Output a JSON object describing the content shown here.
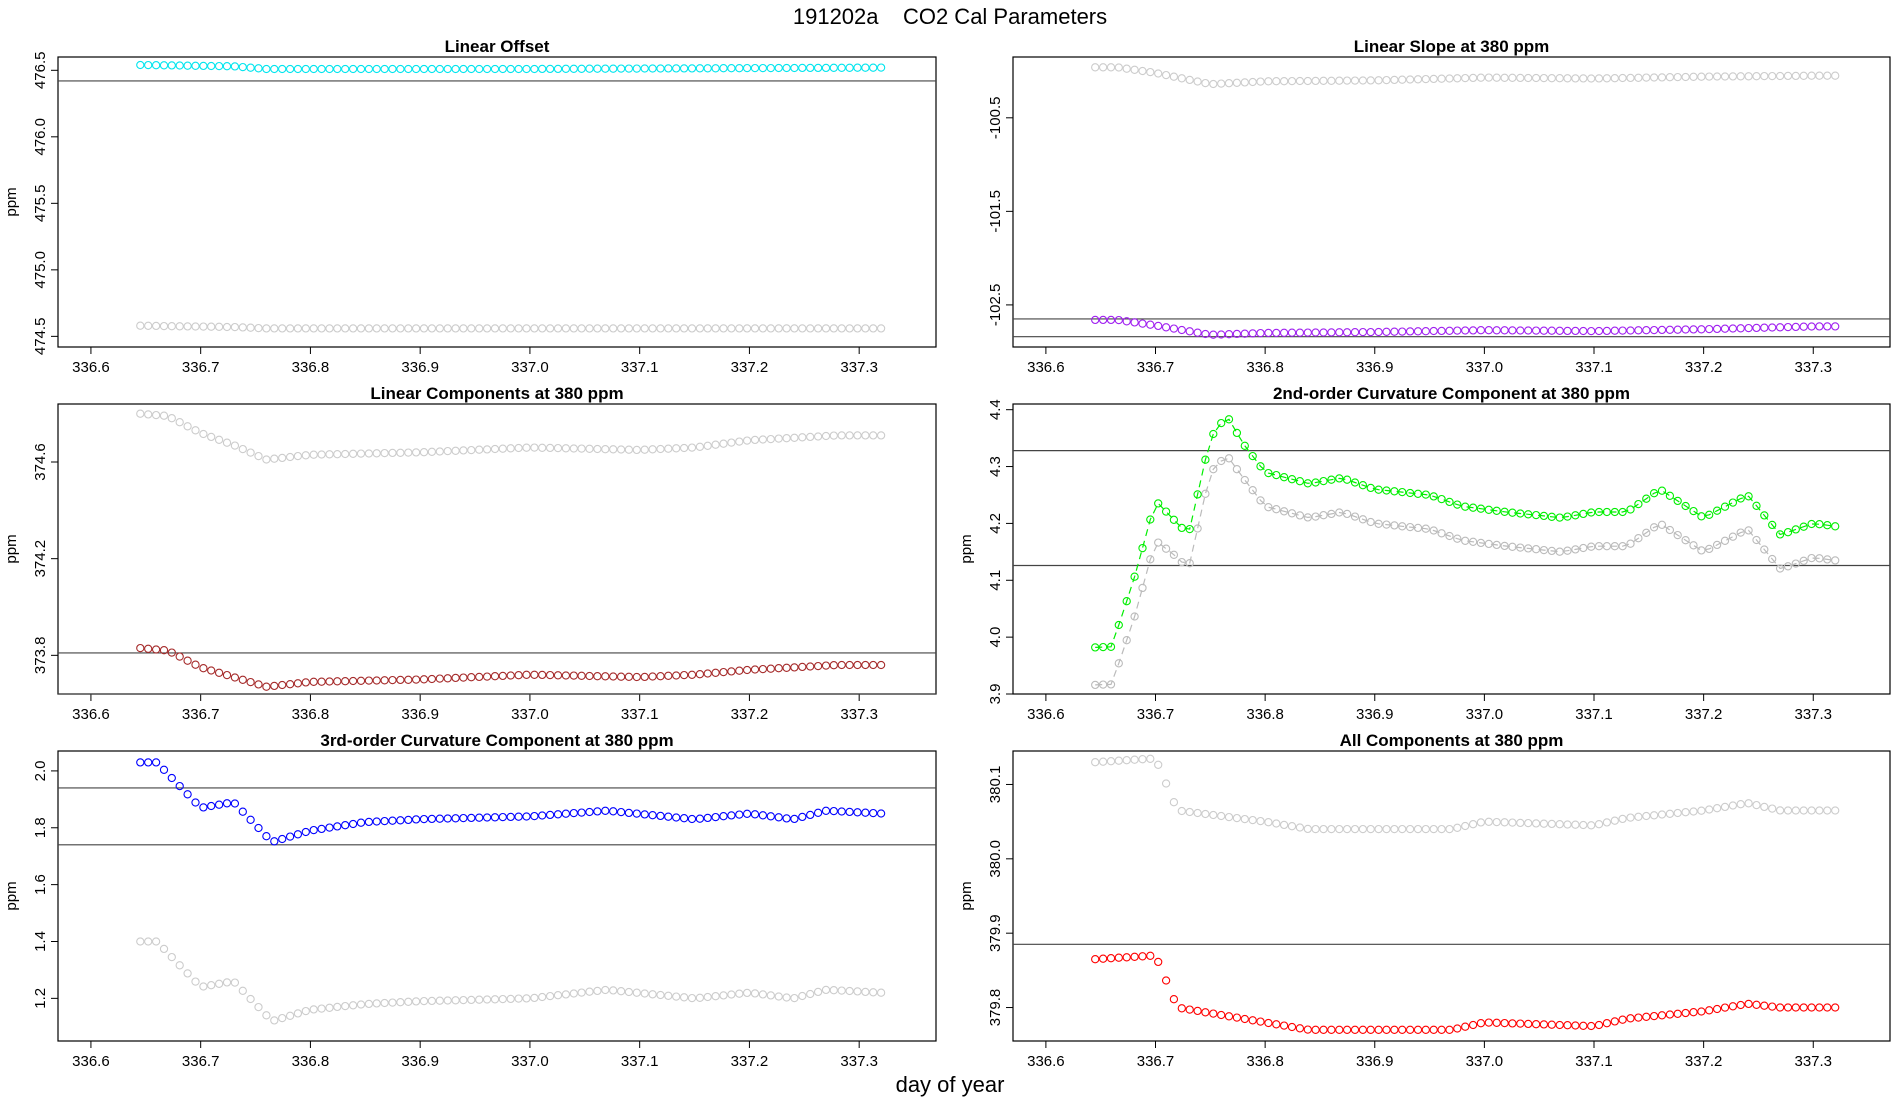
{
  "figure": {
    "title": "191202a    CO2 Cal Parameters",
    "xlabel": "day of year"
  },
  "chart_data": [
    {
      "type": "scatter",
      "title": "Linear Offset",
      "ylabel": "ppm",
      "xlim": [
        336.57,
        337.37
      ],
      "ylim": [
        474.42,
        476.6
      ],
      "x_ticks": [
        336.6,
        336.7,
        336.8,
        336.9,
        337.0,
        337.1,
        337.2,
        337.3
      ],
      "y_ticks": [
        474.5,
        475.0,
        475.5,
        476.0,
        476.5
      ],
      "y_tick_labels": [
        "474.5",
        "475.0",
        "475.5",
        "476.0",
        "476.5"
      ],
      "hlines": [
        476.42
      ],
      "series": [
        {
          "color": "#00e5ee",
          "connected": false,
          "x": [
            336.645,
            336.73,
            336.76,
            337.0,
            337.32
          ],
          "y": [
            476.54,
            476.53,
            476.51,
            476.51,
            476.52
          ]
        },
        {
          "color": "#cccccc",
          "connected": false,
          "x": [
            336.645,
            336.73,
            336.76,
            337.0,
            337.32
          ],
          "y": [
            474.58,
            474.57,
            474.56,
            474.56,
            474.56
          ]
        }
      ]
    },
    {
      "type": "scatter",
      "title": "Linear Slope at 380 ppm",
      "ylabel": "",
      "xlim": [
        336.57,
        337.37
      ],
      "ylim": [
        -102.95,
        -99.85
      ],
      "x_ticks": [
        336.6,
        336.7,
        336.8,
        336.9,
        337.0,
        337.1,
        337.2,
        337.3
      ],
      "y_ticks": [
        -100.5,
        -101.5,
        -102.5
      ],
      "y_tick_labels": [
        "-100.5",
        "-101.5",
        "-102.5"
      ],
      "hlines": [
        -102.65,
        -102.84
      ],
      "series": [
        {
          "color": "#cccccc",
          "connected": false,
          "x": [
            336.645,
            336.665,
            336.7,
            336.75,
            336.8,
            336.9,
            337.0,
            337.1,
            337.2,
            337.3,
            337.32
          ],
          "y": [
            -99.96,
            -99.96,
            -100.02,
            -100.14,
            -100.11,
            -100.1,
            -100.07,
            -100.08,
            -100.06,
            -100.05,
            -100.05
          ]
        },
        {
          "color": "#a020f0",
          "connected": false,
          "x": [
            336.645,
            336.665,
            336.7,
            336.75,
            336.8,
            336.9,
            337.0,
            337.1,
            337.2,
            337.3,
            337.32
          ],
          "y": [
            -102.66,
            -102.66,
            -102.72,
            -102.82,
            -102.8,
            -102.79,
            -102.77,
            -102.78,
            -102.76,
            -102.73,
            -102.73
          ]
        }
      ]
    },
    {
      "type": "scatter",
      "title": "Linear Components at 380 ppm",
      "ylabel": "ppm",
      "xlim": [
        336.57,
        337.37
      ],
      "ylim": [
        373.64,
        374.84
      ],
      "x_ticks": [
        336.6,
        336.7,
        336.8,
        336.9,
        337.0,
        337.1,
        337.2,
        337.3
      ],
      "y_ticks": [
        373.8,
        374.2,
        374.6
      ],
      "y_tick_labels": [
        "373.8",
        "374.2",
        "374.6"
      ],
      "hlines": [
        373.81,
        373.64
      ],
      "series": [
        {
          "color": "#cccccc",
          "connected": false,
          "x": [
            336.645,
            336.67,
            336.7,
            336.73,
            336.76,
            336.8,
            336.9,
            337.0,
            337.1,
            337.15,
            337.2,
            337.28,
            337.32
          ],
          "y": [
            374.8,
            374.79,
            374.72,
            374.67,
            374.61,
            374.63,
            374.64,
            374.66,
            374.65,
            374.66,
            374.69,
            374.71,
            374.71
          ]
        },
        {
          "color": "#a52a2a",
          "connected": false,
          "x": [
            336.645,
            336.67,
            336.7,
            336.73,
            336.76,
            336.8,
            336.9,
            337.0,
            337.1,
            337.15,
            337.2,
            337.28,
            337.32
          ],
          "y": [
            373.83,
            373.82,
            373.75,
            373.71,
            373.67,
            373.69,
            373.7,
            373.72,
            373.71,
            373.72,
            373.74,
            373.76,
            373.76
          ]
        }
      ]
    },
    {
      "type": "line",
      "title": "2nd-order Curvature Component at 380 ppm",
      "ylabel": "ppm",
      "xlim": [
        336.57,
        337.37
      ],
      "ylim": [
        3.9,
        4.41
      ],
      "x_ticks": [
        336.6,
        336.7,
        336.8,
        336.9,
        337.0,
        337.1,
        337.2,
        337.3
      ],
      "y_ticks": [
        3.9,
        4.0,
        4.1,
        4.2,
        4.3,
        4.4
      ],
      "y_tick_labels": [
        "3.9",
        "4.0",
        "4.1",
        "4.2",
        "4.3",
        "4.4"
      ],
      "hlines": [
        4.328,
        4.126
      ],
      "series": [
        {
          "color": "#bbbbbb",
          "connected": true,
          "x": [
            336.645,
            336.66,
            336.68,
            336.7,
            336.72,
            336.73,
            336.75,
            336.765,
            336.78,
            336.8,
            336.84,
            336.87,
            336.9,
            336.95,
            336.98,
            337.02,
            337.07,
            337.1,
            337.13,
            337.16,
            337.2,
            337.24,
            337.27,
            337.3,
            337.32
          ],
          "y": [
            3.916,
            3.917,
            4.03,
            4.17,
            4.14,
            4.12,
            4.29,
            4.32,
            4.28,
            4.23,
            4.21,
            4.22,
            4.2,
            4.19,
            4.17,
            4.16,
            4.15,
            4.16,
            4.16,
            4.2,
            4.15,
            4.19,
            4.12,
            4.14,
            4.135
          ]
        },
        {
          "color": "#00ee00",
          "connected": true,
          "x": [
            336.645,
            336.66,
            336.68,
            336.7,
            336.72,
            336.73,
            336.75,
            336.765,
            336.78,
            336.8,
            336.84,
            336.87,
            336.9,
            336.95,
            336.98,
            337.02,
            337.07,
            337.1,
            337.13,
            337.16,
            337.2,
            337.24,
            337.27,
            337.3,
            337.32
          ],
          "y": [
            3.982,
            3.983,
            4.1,
            4.24,
            4.2,
            4.18,
            4.35,
            4.39,
            4.34,
            4.29,
            4.27,
            4.28,
            4.26,
            4.25,
            4.23,
            4.22,
            4.21,
            4.22,
            4.22,
            4.26,
            4.21,
            4.25,
            4.18,
            4.2,
            4.195
          ]
        }
      ]
    },
    {
      "type": "scatter",
      "title": "3rd-order Curvature Component at 380 ppm",
      "ylabel": "ppm",
      "xlim": [
        336.57,
        337.37
      ],
      "ylim": [
        1.05,
        2.07
      ],
      "x_ticks": [
        336.6,
        336.7,
        336.8,
        336.9,
        337.0,
        337.1,
        337.2,
        337.3
      ],
      "y_ticks": [
        1.2,
        1.4,
        1.6,
        1.8,
        2.0
      ],
      "y_tick_labels": [
        "1.2",
        "1.4",
        "1.6",
        "1.8",
        "2.0"
      ],
      "hlines": [
        1.94,
        1.74
      ],
      "series": [
        {
          "color": "#0000ff",
          "connected": false,
          "x": [
            336.645,
            336.66,
            336.7,
            336.73,
            336.765,
            336.8,
            336.85,
            336.9,
            337.0,
            337.07,
            337.15,
            337.2,
            337.24,
            337.27,
            337.32
          ],
          "y": [
            2.03,
            2.03,
            1.87,
            1.89,
            1.75,
            1.79,
            1.82,
            1.83,
            1.84,
            1.86,
            1.83,
            1.85,
            1.83,
            1.86,
            1.85
          ]
        },
        {
          "color": "#cccccc",
          "connected": false,
          "x": [
            336.645,
            336.66,
            336.7,
            336.73,
            336.765,
            336.8,
            336.85,
            336.9,
            337.0,
            337.07,
            337.15,
            337.2,
            337.24,
            337.27,
            337.32
          ],
          "y": [
            1.4,
            1.4,
            1.24,
            1.26,
            1.12,
            1.16,
            1.18,
            1.19,
            1.2,
            1.23,
            1.2,
            1.22,
            1.2,
            1.23,
            1.22
          ]
        }
      ]
    },
    {
      "type": "scatter",
      "title": "All Components at 380 ppm",
      "ylabel": "ppm",
      "xlim": [
        336.57,
        337.37
      ],
      "ylim": [
        379.755,
        380.145
      ],
      "x_ticks": [
        336.6,
        336.7,
        336.8,
        336.9,
        337.0,
        337.1,
        337.2,
        337.3
      ],
      "y_ticks": [
        379.8,
        379.9,
        380.0,
        380.1
      ],
      "y_tick_labels": [
        "379.8",
        "379.9",
        "380.0",
        "380.1"
      ],
      "hlines": [
        379.885
      ],
      "series": [
        {
          "color": "#cccccc",
          "connected": false,
          "x": [
            336.645,
            336.7,
            336.72,
            336.8,
            336.84,
            336.97,
            337.0,
            337.1,
            337.13,
            337.2,
            337.24,
            337.27,
            337.32
          ],
          "y": [
            380.13,
            380.135,
            380.065,
            380.05,
            380.04,
            380.04,
            380.05,
            380.045,
            380.055,
            380.065,
            380.075,
            380.065,
            380.065
          ]
        },
        {
          "color": "#ff0000",
          "connected": false,
          "x": [
            336.645,
            336.7,
            336.72,
            336.8,
            336.84,
            336.97,
            337.0,
            337.1,
            337.13,
            337.2,
            337.24,
            337.27,
            337.32
          ],
          "y": [
            379.865,
            379.87,
            379.8,
            379.78,
            379.77,
            379.77,
            379.78,
            379.775,
            379.785,
            379.795,
            379.805,
            379.8,
            379.8
          ]
        }
      ]
    }
  ]
}
